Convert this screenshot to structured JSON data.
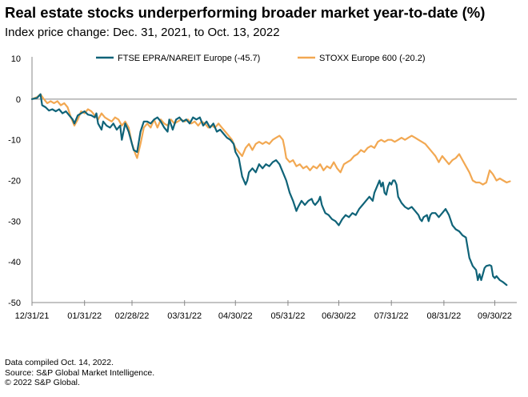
{
  "chart_data": {
    "type": "line",
    "title": "Real estate stocks underperforming broader market year-to-date (%)",
    "subtitle": "Index price change: Dec. 31, 2021, to Oct. 13, 2022",
    "xlabel": "",
    "ylabel": "",
    "ylim": [
      -50,
      10
    ],
    "yticks": [
      "10",
      "0",
      "-10",
      "-20",
      "-30",
      "-40",
      "-50"
    ],
    "xticks": [
      "12/31/21",
      "01/31/22",
      "02/28/22",
      "03/31/22",
      "04/30/22",
      "05/31/22",
      "06/30/22",
      "07/31/22",
      "08/31/22",
      "09/30/22"
    ],
    "xtick_days": [
      0,
      31,
      59,
      90,
      120,
      151,
      181,
      212,
      243,
      273
    ],
    "xlim_days": [
      0,
      286
    ],
    "legend_position": "top",
    "series": [
      {
        "name": "FTSE EPRA/NAREIT Europe (-45.7)",
        "color": "#0f6378",
        "points": [
          [
            0,
            0
          ],
          [
            3,
            0.3
          ],
          [
            5,
            1.2
          ],
          [
            6,
            -1.5
          ],
          [
            8,
            -2
          ],
          [
            10,
            -2.8
          ],
          [
            12,
            -2.5
          ],
          [
            14,
            -3
          ],
          [
            16,
            -2.5
          ],
          [
            18,
            -3.5
          ],
          [
            20,
            -3
          ],
          [
            22,
            -4
          ],
          [
            24,
            -5
          ],
          [
            25,
            -6
          ],
          [
            27,
            -4
          ],
          [
            29,
            -3.5
          ],
          [
            31,
            -3
          ],
          [
            33,
            -3.8
          ],
          [
            35,
            -4
          ],
          [
            37,
            -4.5
          ],
          [
            38,
            -3.5
          ],
          [
            39,
            -6
          ],
          [
            41,
            -7.5
          ],
          [
            42,
            -5.5
          ],
          [
            44,
            -6.5
          ],
          [
            46,
            -7
          ],
          [
            48,
            -6
          ],
          [
            50,
            -7.5
          ],
          [
            52,
            -6.5
          ],
          [
            53,
            -10
          ],
          [
            55,
            -6
          ],
          [
            57,
            -8
          ],
          [
            59,
            -11
          ],
          [
            60,
            -12.5
          ],
          [
            62,
            -13
          ],
          [
            64,
            -8
          ],
          [
            66,
            -5.5
          ],
          [
            68,
            -5.5
          ],
          [
            70,
            -6
          ],
          [
            72,
            -5
          ],
          [
            74,
            -4.5
          ],
          [
            76,
            -5.5
          ],
          [
            78,
            -7
          ],
          [
            80,
            -8
          ],
          [
            81,
            -5
          ],
          [
            83,
            -7.5
          ],
          [
            85,
            -5
          ],
          [
            87,
            -4.5
          ],
          [
            89,
            -5.5
          ],
          [
            91,
            -5
          ],
          [
            93,
            -6
          ],
          [
            95,
            -4.5
          ],
          [
            97,
            -5
          ],
          [
            99,
            -4.5
          ],
          [
            101,
            -6.5
          ],
          [
            103,
            -5.5
          ],
          [
            105,
            -7
          ],
          [
            107,
            -6
          ],
          [
            109,
            -8
          ],
          [
            111,
            -7.5
          ],
          [
            113,
            -8.5
          ],
          [
            115,
            -9.5
          ],
          [
            117,
            -10
          ],
          [
            119,
            -11
          ],
          [
            120,
            -13
          ],
          [
            122,
            -14.5
          ],
          [
            124,
            -19
          ],
          [
            126,
            -21
          ],
          [
            127,
            -20
          ],
          [
            128,
            -18
          ],
          [
            130,
            -17
          ],
          [
            132,
            -18
          ],
          [
            134,
            -16
          ],
          [
            136,
            -17
          ],
          [
            138,
            -16
          ],
          [
            140,
            -16.5
          ],
          [
            142,
            -15.5
          ],
          [
            144,
            -15
          ],
          [
            146,
            -16
          ],
          [
            148,
            -18
          ],
          [
            150,
            -20
          ],
          [
            152,
            -23
          ],
          [
            154,
            -25
          ],
          [
            156,
            -27.5
          ],
          [
            157,
            -26.5
          ],
          [
            159,
            -25
          ],
          [
            161,
            -26
          ],
          [
            163,
            -25
          ],
          [
            165,
            -24.5
          ],
          [
            166,
            -25.5
          ],
          [
            167,
            -26
          ],
          [
            168,
            -25.5
          ],
          [
            169,
            -25
          ],
          [
            170,
            -24
          ],
          [
            171,
            -26
          ],
          [
            172,
            -27
          ],
          [
            173,
            -28
          ],
          [
            175,
            -28.5
          ],
          [
            176,
            -29
          ],
          [
            177,
            -29.5
          ],
          [
            179,
            -30
          ],
          [
            181,
            -31
          ],
          [
            183,
            -29.5
          ],
          [
            185,
            -28.5
          ],
          [
            187,
            -29
          ],
          [
            189,
            -28
          ],
          [
            191,
            -28.5
          ],
          [
            193,
            -27
          ],
          [
            195,
            -26
          ],
          [
            197,
            -25
          ],
          [
            199,
            -24
          ],
          [
            201,
            -25
          ],
          [
            202,
            -23
          ],
          [
            204,
            -21
          ],
          [
            205,
            -20
          ],
          [
            206,
            -21.5
          ],
          [
            207,
            -20.5
          ],
          [
            208,
            -23
          ],
          [
            209,
            -23.5
          ],
          [
            210,
            -21.5
          ],
          [
            211,
            -20.5
          ],
          [
            212,
            -21
          ],
          [
            213,
            -20
          ],
          [
            214,
            -20
          ],
          [
            215,
            -21
          ],
          [
            216,
            -24
          ],
          [
            218,
            -25.5
          ],
          [
            220,
            -26.5
          ],
          [
            222,
            -27
          ],
          [
            224,
            -26.5
          ],
          [
            226,
            -27.5
          ],
          [
            228,
            -28.5
          ],
          [
            229,
            -29.5
          ],
          [
            230,
            -30
          ],
          [
            231,
            -29
          ],
          [
            233,
            -28.5
          ],
          [
            234,
            -30
          ],
          [
            235,
            -28.5
          ],
          [
            236,
            -28
          ],
          [
            238,
            -28
          ],
          [
            240,
            -29
          ],
          [
            242,
            -28
          ],
          [
            244,
            -27
          ],
          [
            246,
            -28.5
          ],
          [
            248,
            -31
          ],
          [
            250,
            -32
          ],
          [
            252,
            -32.5
          ],
          [
            254,
            -33.5
          ],
          [
            256,
            -34
          ],
          [
            258,
            -39
          ],
          [
            260,
            -41
          ],
          [
            262,
            -42
          ],
          [
            263,
            -44.5
          ],
          [
            264,
            -43
          ],
          [
            265,
            -44.5
          ],
          [
            266,
            -43
          ],
          [
            267,
            -41.5
          ],
          [
            268,
            -41
          ],
          [
            270,
            -40.8
          ],
          [
            271,
            -41
          ],
          [
            272,
            -43.5
          ],
          [
            273,
            -44
          ],
          [
            274,
            -43.5
          ],
          [
            275,
            -44
          ],
          [
            276,
            -44.5
          ],
          [
            278,
            -45
          ],
          [
            280,
            -45.7
          ]
        ]
      },
      {
        "name": "STOXX Europe 600 (-20.2)",
        "color": "#f2a852",
        "points": [
          [
            0,
            0
          ],
          [
            3,
            0.5
          ],
          [
            5,
            1.2
          ],
          [
            7,
            0
          ],
          [
            9,
            -1
          ],
          [
            11,
            -0.5
          ],
          [
            13,
            -1
          ],
          [
            15,
            -0.5
          ],
          [
            17,
            -1.5
          ],
          [
            19,
            -1
          ],
          [
            21,
            -2
          ],
          [
            23,
            -4.5
          ],
          [
            25,
            -6.5
          ],
          [
            27,
            -5
          ],
          [
            29,
            -3
          ],
          [
            31,
            -3.5
          ],
          [
            33,
            -2.5
          ],
          [
            35,
            -3
          ],
          [
            37,
            -4
          ],
          [
            39,
            -5
          ],
          [
            41,
            -3.5
          ],
          [
            43,
            -4.5
          ],
          [
            45,
            -5
          ],
          [
            47,
            -5.5
          ],
          [
            49,
            -4.5
          ],
          [
            51,
            -5
          ],
          [
            53,
            -6.5
          ],
          [
            55,
            -5.5
          ],
          [
            57,
            -7
          ],
          [
            59,
            -11
          ],
          [
            61,
            -13.5
          ],
          [
            62,
            -14.5
          ],
          [
            64,
            -11
          ],
          [
            66,
            -7
          ],
          [
            68,
            -6
          ],
          [
            70,
            -7
          ],
          [
            72,
            -5
          ],
          [
            74,
            -7
          ],
          [
            76,
            -5
          ],
          [
            78,
            -6
          ],
          [
            80,
            -6.5
          ],
          [
            82,
            -5
          ],
          [
            84,
            -6
          ],
          [
            86,
            -5.5
          ],
          [
            88,
            -5
          ],
          [
            90,
            -5.5
          ],
          [
            92,
            -5
          ],
          [
            94,
            -6
          ],
          [
            96,
            -5.5
          ],
          [
            98,
            -6.5
          ],
          [
            100,
            -5.5
          ],
          [
            102,
            -6
          ],
          [
            104,
            -7
          ],
          [
            106,
            -6.5
          ],
          [
            108,
            -7
          ],
          [
            110,
            -6
          ],
          [
            112,
            -7
          ],
          [
            114,
            -8
          ],
          [
            116,
            -9
          ],
          [
            118,
            -10
          ],
          [
            120,
            -12
          ],
          [
            122,
            -13
          ],
          [
            124,
            -14
          ],
          [
            126,
            -12
          ],
          [
            128,
            -11
          ],
          [
            130,
            -12.5
          ],
          [
            132,
            -11
          ],
          [
            134,
            -10.5
          ],
          [
            136,
            -11
          ],
          [
            138,
            -10.5
          ],
          [
            140,
            -11
          ],
          [
            142,
            -10
          ],
          [
            144,
            -9.5
          ],
          [
            146,
            -9
          ],
          [
            148,
            -10
          ],
          [
            149,
            -12
          ],
          [
            150,
            -14.5
          ],
          [
            152,
            -15.5
          ],
          [
            154,
            -15
          ],
          [
            156,
            -16.5
          ],
          [
            158,
            -16
          ],
          [
            160,
            -17
          ],
          [
            162,
            -16.5
          ],
          [
            164,
            -17.5
          ],
          [
            166,
            -16.5
          ],
          [
            168,
            -17
          ],
          [
            170,
            -16
          ],
          [
            172,
            -17.5
          ],
          [
            174,
            -16.5
          ],
          [
            176,
            -17
          ],
          [
            178,
            -15.5
          ],
          [
            180,
            -17
          ],
          [
            182,
            -18
          ],
          [
            184,
            -16
          ],
          [
            186,
            -15.5
          ],
          [
            188,
            -15
          ],
          [
            190,
            -14
          ],
          [
            192,
            -13.5
          ],
          [
            194,
            -12.5
          ],
          [
            196,
            -13
          ],
          [
            198,
            -12
          ],
          [
            200,
            -11.5
          ],
          [
            202,
            -12
          ],
          [
            204,
            -10.5
          ],
          [
            206,
            -10
          ],
          [
            208,
            -10.5
          ],
          [
            210,
            -10
          ],
          [
            212,
            -10
          ],
          [
            214,
            -10.5
          ],
          [
            216,
            -10
          ],
          [
            218,
            -9.5
          ],
          [
            220,
            -10
          ],
          [
            222,
            -9.5
          ],
          [
            224,
            -9
          ],
          [
            226,
            -9.5
          ],
          [
            228,
            -10
          ],
          [
            230,
            -10.5
          ],
          [
            232,
            -11
          ],
          [
            234,
            -12
          ],
          [
            236,
            -13
          ],
          [
            238,
            -14
          ],
          [
            240,
            -15.5
          ],
          [
            242,
            -14
          ],
          [
            244,
            -15
          ],
          [
            246,
            -16
          ],
          [
            248,
            -15
          ],
          [
            250,
            -14.5
          ],
          [
            252,
            -13.5
          ],
          [
            254,
            -15
          ],
          [
            256,
            -16.5
          ],
          [
            258,
            -18
          ],
          [
            260,
            -20
          ],
          [
            262,
            -20.5
          ],
          [
            264,
            -20.5
          ],
          [
            266,
            -21
          ],
          [
            268,
            -20.5
          ],
          [
            269,
            -19
          ],
          [
            270,
            -17.5
          ],
          [
            271,
            -18
          ],
          [
            272,
            -18.5
          ],
          [
            274,
            -20
          ],
          [
            276,
            -19.5
          ],
          [
            278,
            -20
          ],
          [
            280,
            -20.5
          ],
          [
            282,
            -20.2
          ]
        ]
      }
    ]
  },
  "footer": {
    "line1": "Data compiled Oct. 14, 2022.",
    "line2": "Source: S&P Global Market Intelligence.",
    "line3": "© 2022 S&P Global."
  }
}
